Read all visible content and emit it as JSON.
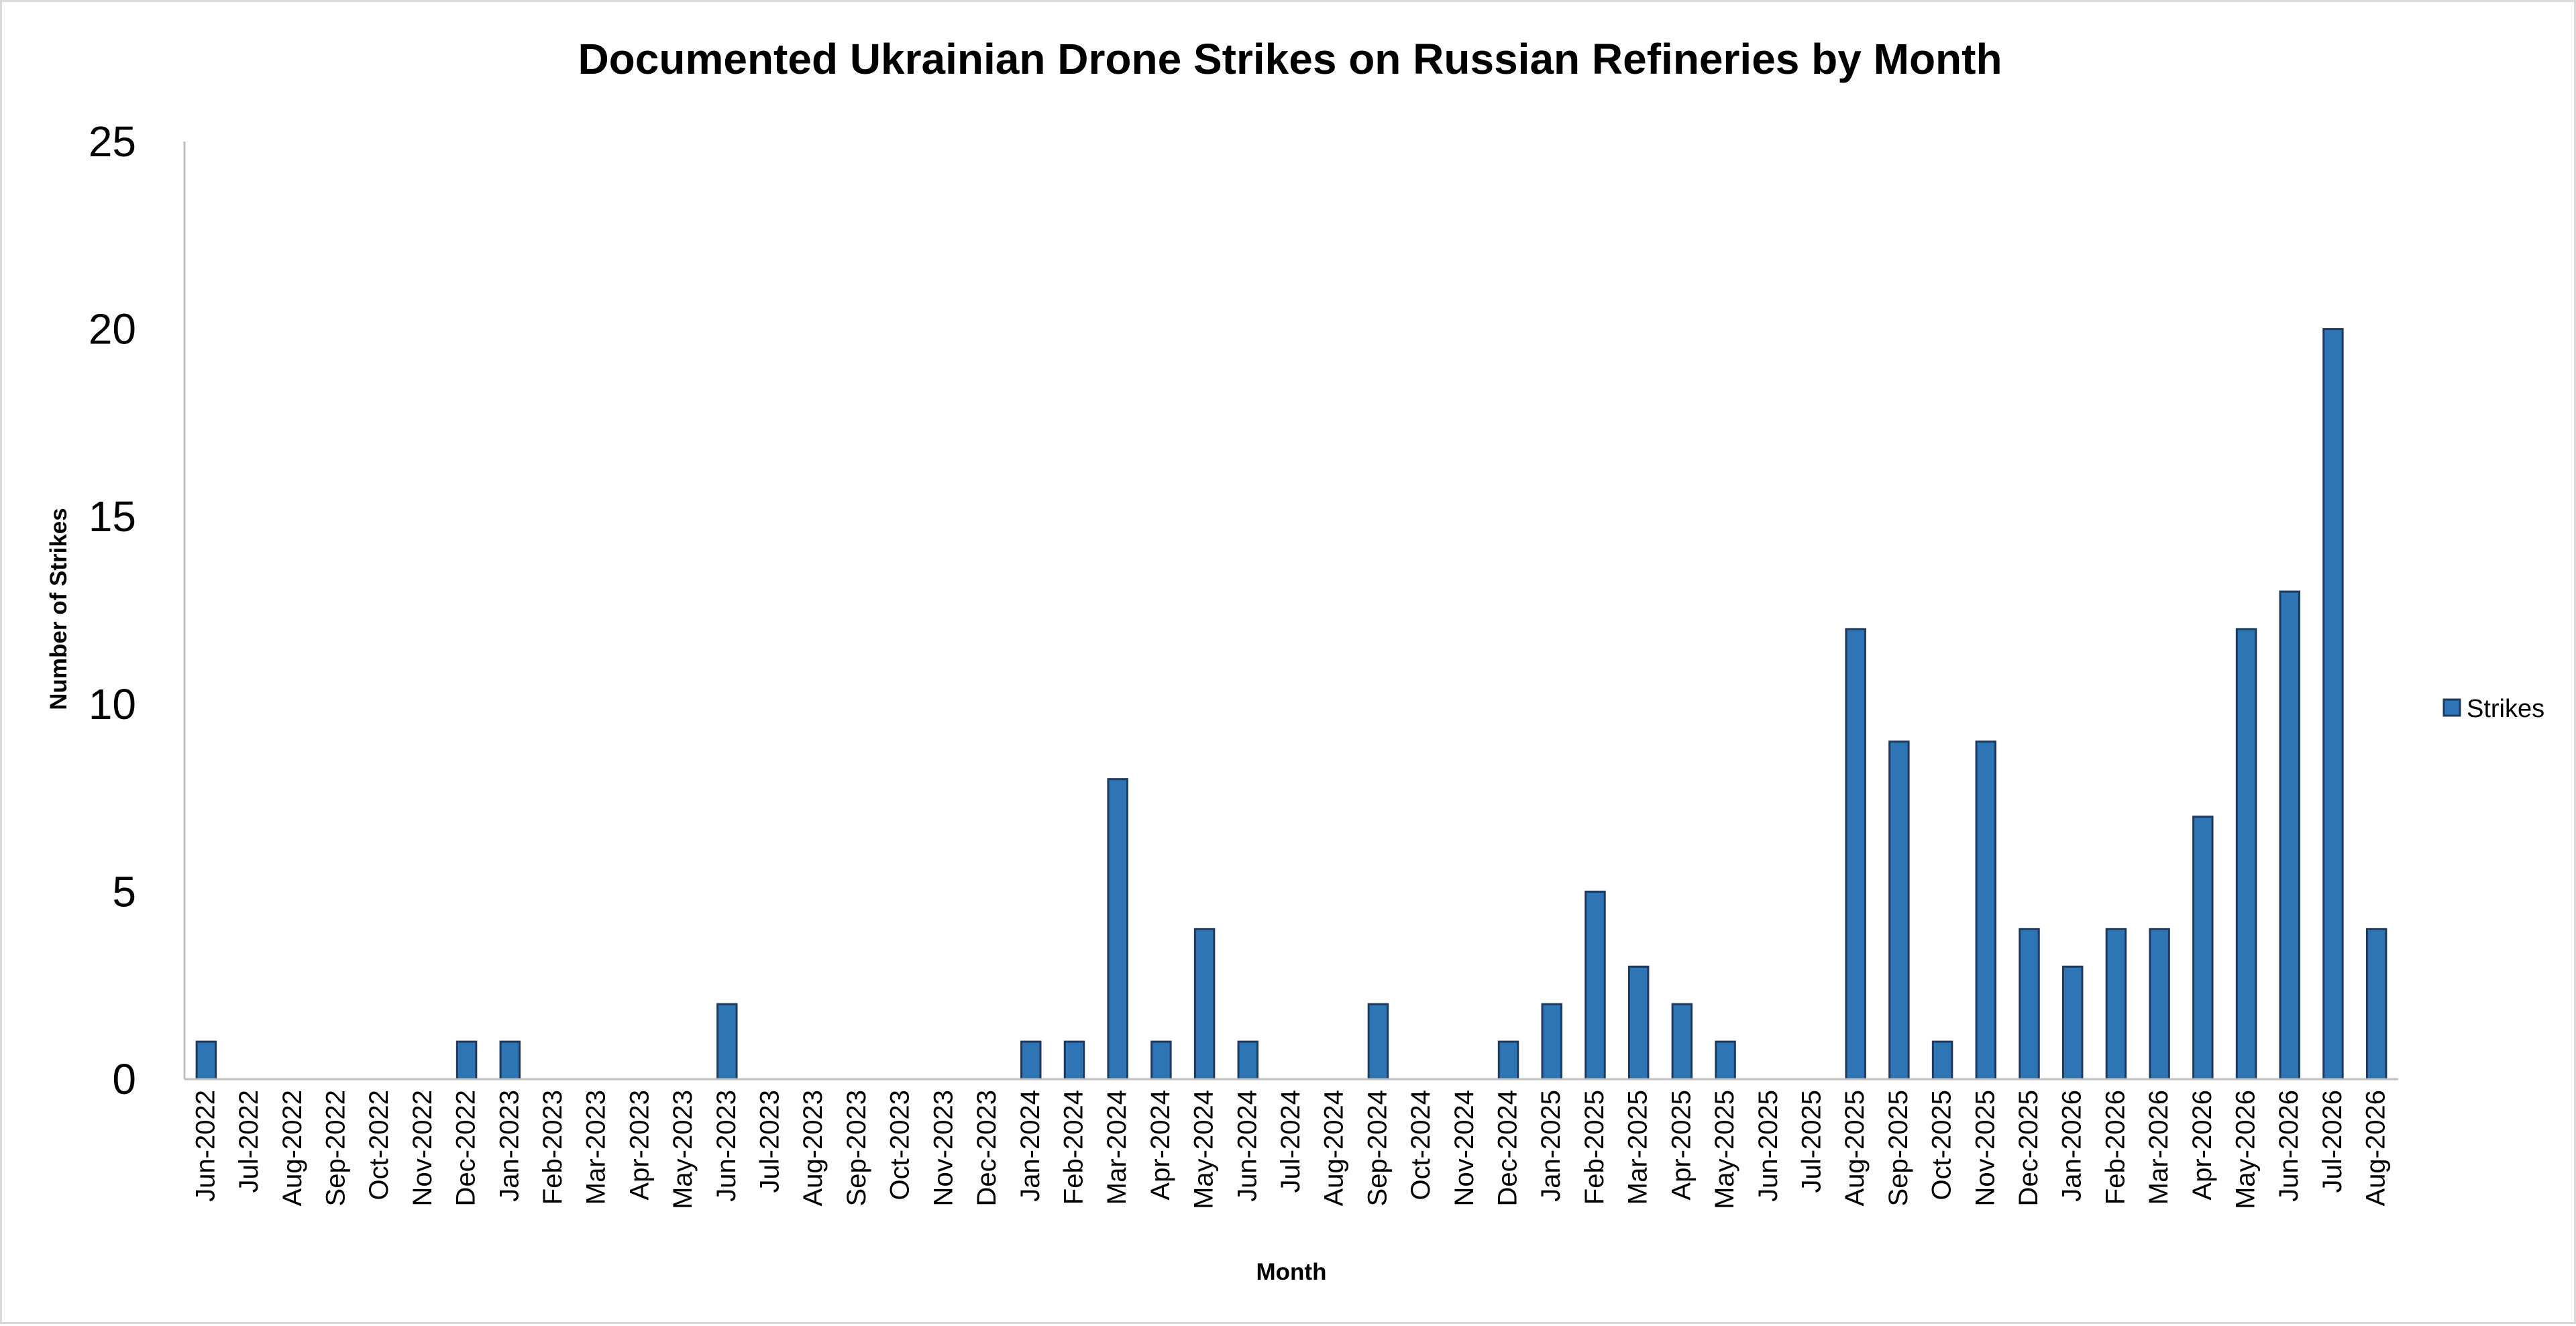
{
  "chart_data": {
    "type": "bar",
    "title": "Documented Ukrainian Drone Strikes on Russian Refineries by Month",
    "xlabel": "Month",
    "ylabel": "Number of Strikes",
    "ylim": [
      0,
      25
    ],
    "yticks": [
      0,
      5,
      10,
      15,
      20,
      25
    ],
    "grid": false,
    "legend": "right",
    "bar_color": "#2e75b6",
    "bar_edge_color": "#1f3a5f",
    "axis_color": "#bfbfbf",
    "categories": [
      "Jun-2022",
      "Jul-2022",
      "Aug-2022",
      "Sep-2022",
      "Oct-2022",
      "Nov-2022",
      "Dec-2022",
      "Jan-2023",
      "Feb-2023",
      "Mar-2023",
      "Apr-2023",
      "May-2023",
      "Jun-2023",
      "Jul-2023",
      "Aug-2023",
      "Sep-2023",
      "Oct-2023",
      "Nov-2023",
      "Dec-2023",
      "Jan-2024",
      "Feb-2024",
      "Mar-2024",
      "Apr-2024",
      "May-2024",
      "Jun-2024",
      "Jul-2024",
      "Aug-2024",
      "Sep-2024",
      "Oct-2024",
      "Nov-2024",
      "Dec-2024",
      "Jan-2025",
      "Feb-2025",
      "Mar-2025",
      "Apr-2025",
      "May-2025",
      "Jun-2025",
      "Jul-2025",
      "Aug-2025",
      "Sep-2025",
      "Oct-2025",
      "Nov-2025",
      "Dec-2025",
      "Jan-2026",
      "Feb-2026",
      "Mar-2026",
      "Apr-2026",
      "May-2026",
      "Jun-2026",
      "Jul-2026",
      "Aug-2026"
    ],
    "series": [
      {
        "name": "Strikes",
        "values": [
          1,
          0,
          0,
          0,
          0,
          0,
          1,
          1,
          0,
          0,
          0,
          0,
          2,
          0,
          0,
          0,
          0,
          0,
          0,
          1,
          1,
          8,
          1,
          4,
          1,
          0,
          0,
          2,
          0,
          0,
          1,
          2,
          5,
          3,
          2,
          1,
          0,
          0,
          12,
          9,
          1,
          9,
          4,
          3,
          4,
          4,
          7,
          12,
          13,
          20,
          4
        ]
      }
    ]
  }
}
